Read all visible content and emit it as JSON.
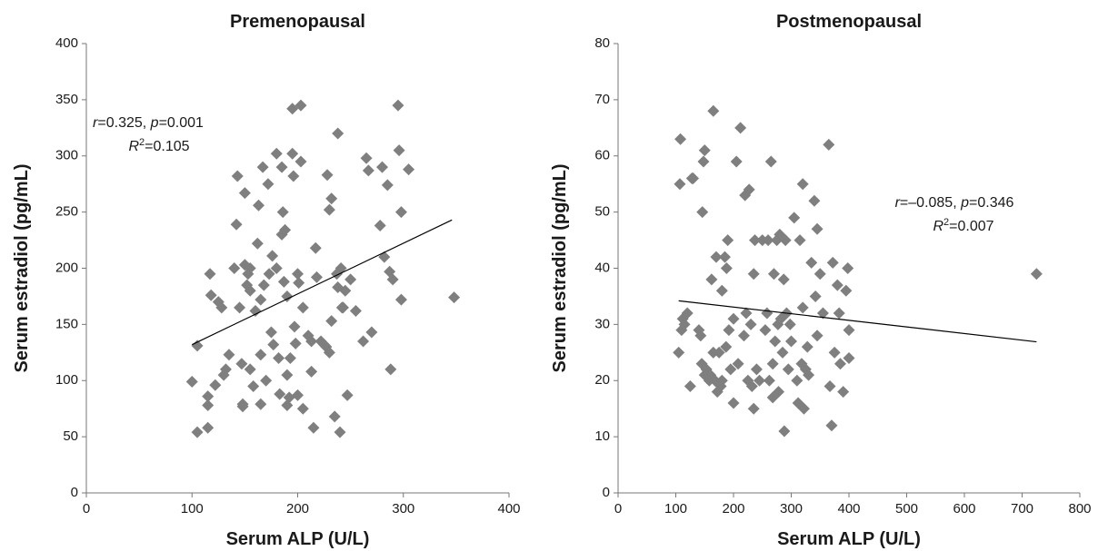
{
  "chart_data": [
    {
      "type": "scatter",
      "title": "Premenopausal",
      "xlabel": "Serum ALP (U/L)",
      "ylabel": "Serum estradiol (pg/mL)",
      "color": "#7f7f7f",
      "xlim": [
        0,
        400
      ],
      "xticks": [
        0,
        100,
        200,
        300,
        400
      ],
      "ylim": [
        0,
        400
      ],
      "yticks": [
        0,
        50,
        100,
        150,
        200,
        250,
        300,
        350,
        400
      ],
      "x": [
        100,
        105,
        105,
        115,
        115,
        115,
        117,
        118,
        122,
        125,
        128,
        130,
        132,
        135,
        140,
        142,
        143,
        145,
        147,
        148,
        148,
        150,
        150,
        152,
        153,
        155,
        155,
        155,
        158,
        160,
        162,
        163,
        165,
        165,
        165,
        167,
        168,
        170,
        172,
        173,
        175,
        176,
        177,
        180,
        180,
        182,
        183,
        185,
        185,
        186,
        187,
        188,
        190,
        190,
        190,
        192,
        193,
        195,
        195,
        196,
        197,
        198,
        200,
        200,
        201,
        203,
        203,
        205,
        205,
        210,
        213,
        213,
        215,
        217,
        218,
        222,
        225,
        227,
        228,
        230,
        230,
        232,
        232,
        235,
        237,
        238,
        238,
        240,
        241,
        242,
        243,
        245,
        247,
        250,
        255,
        262,
        265,
        267,
        270,
        278,
        280,
        282,
        285,
        287,
        288,
        290,
        295,
        296,
        298,
        298,
        305,
        348
      ],
      "y": [
        99,
        54,
        131,
        58,
        78,
        86,
        195,
        176,
        96,
        170,
        165,
        105,
        110,
        123,
        200,
        239,
        282,
        165,
        115,
        77,
        79,
        203,
        267,
        185,
        195,
        110,
        200,
        180,
        95,
        162,
        222,
        256,
        79,
        123,
        172,
        290,
        185,
        100,
        275,
        195,
        143,
        211,
        132,
        302,
        200,
        120,
        88,
        290,
        230,
        250,
        188,
        234,
        78,
        105,
        175,
        85,
        120,
        342,
        302,
        282,
        148,
        133,
        87,
        195,
        187,
        345,
        295,
        165,
        75,
        140,
        108,
        135,
        58,
        218,
        192,
        135,
        132,
        130,
        283,
        125,
        252,
        153,
        262,
        68,
        195,
        320,
        183,
        54,
        200,
        165,
        165,
        180,
        87,
        190,
        162,
        135,
        298,
        287,
        143,
        238,
        290,
        210,
        274,
        197,
        110,
        190,
        345,
        305,
        250,
        172,
        288,
        174
      ],
      "trendline": {
        "x": [
          100,
          346
        ],
        "y": [
          132,
          243
        ]
      },
      "annotation": [
        [
          {
            "t": "r",
            "style": "italic"
          },
          {
            "t": "=0.325, "
          },
          {
            "t": "p",
            "style": "italic"
          },
          {
            "t": "=0.001"
          }
        ],
        [
          {
            "t": "R",
            "style": "italic"
          },
          {
            "t": "2",
            "style": "sup"
          },
          {
            "t": "=0.105"
          }
        ]
      ]
    },
    {
      "type": "scatter",
      "title": "Postmenopausal",
      "xlabel": "Serum ALP (U/L)",
      "ylabel": "Serum estradiol (pg/mL)",
      "color": "#7f7f7f",
      "xlim": [
        0,
        800
      ],
      "xticks": [
        0,
        100,
        200,
        300,
        400,
        500,
        600,
        700,
        800
      ],
      "ylim": [
        0,
        80
      ],
      "yticks": [
        0,
        10,
        20,
        30,
        40,
        50,
        60,
        70,
        80
      ],
      "x": [
        105,
        107,
        108,
        110,
        112,
        115,
        120,
        125,
        128,
        130,
        140,
        143,
        145,
        146,
        148,
        150,
        150,
        153,
        158,
        160,
        162,
        165,
        165,
        168,
        170,
        172,
        175,
        178,
        180,
        180,
        185,
        187,
        188,
        190,
        192,
        195,
        200,
        200,
        205,
        208,
        212,
        218,
        220,
        222,
        225,
        227,
        230,
        232,
        235,
        235,
        237,
        240,
        245,
        250,
        255,
        258,
        260,
        262,
        265,
        268,
        268,
        270,
        272,
        275,
        277,
        278,
        280,
        282,
        285,
        287,
        288,
        290,
        292,
        295,
        298,
        300,
        305,
        310,
        312,
        315,
        318,
        320,
        320,
        322,
        325,
        328,
        330,
        335,
        340,
        342,
        345,
        345,
        350,
        355,
        365,
        367,
        370,
        372,
        375,
        380,
        383,
        385,
        390,
        395,
        398,
        400,
        400,
        725
      ],
      "y": [
        25,
        55,
        63,
        29,
        31,
        30,
        32,
        19,
        56,
        56,
        29,
        28,
        23,
        50,
        59,
        61,
        21,
        22,
        20,
        21,
        38,
        68,
        25,
        20,
        42,
        18,
        25,
        19,
        36,
        20,
        42,
        26,
        40,
        45,
        29,
        22,
        31,
        16,
        59,
        23,
        65,
        28,
        53,
        32,
        20,
        54,
        30,
        19,
        39,
        15,
        45,
        22,
        20,
        45,
        29,
        32,
        45,
        20,
        59,
        17,
        23,
        39,
        27,
        45,
        30,
        18,
        46,
        31,
        25,
        38,
        11,
        45,
        32,
        22,
        30,
        27,
        49,
        20,
        16,
        45,
        23,
        55,
        33,
        15,
        22,
        26,
        21,
        41,
        52,
        35,
        28,
        47,
        39,
        32,
        62,
        19,
        12,
        41,
        25,
        37,
        32,
        23,
        18,
        36,
        40,
        29,
        24,
        39
      ],
      "trendline": {
        "x": [
          105,
          725
        ],
        "y": [
          34.2,
          26.9
        ]
      },
      "annotation": [
        [
          {
            "t": "r",
            "style": "italic"
          },
          {
            "t": "=–0.085, "
          },
          {
            "t": "p",
            "style": "italic"
          },
          {
            "t": "=0.346"
          }
        ],
        [
          {
            "t": "R",
            "style": "italic"
          },
          {
            "t": "2",
            "style": "sup"
          },
          {
            "t": "=0.007"
          }
        ]
      ]
    }
  ]
}
